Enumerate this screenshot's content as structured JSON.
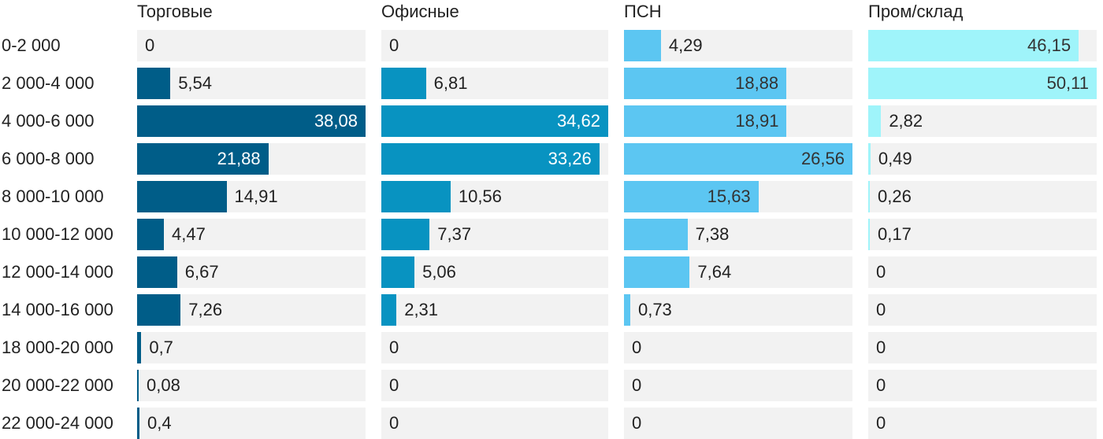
{
  "chart_data": {
    "type": "bar",
    "orientation": "horizontal",
    "categories": [
      "0-2 000",
      "2 000-4 000",
      "4 000-6 000",
      "6 000-8 000",
      "8 000-10 000",
      "10 000-12 000",
      "12 000-14 000",
      "14 000-16 000",
      "18 000-20 000",
      "20 000-22 000",
      "22 000-24 000"
    ],
    "series": [
      {
        "name": "Торговые",
        "color": "#005d88",
        "values": [
          0,
          5.54,
          38.08,
          21.88,
          14.91,
          4.47,
          6.67,
          7.26,
          0.7,
          0.08,
          0.4
        ],
        "labels": [
          "0",
          "5,54",
          "38,08",
          "21,88",
          "14,91",
          "4,47",
          "6,67",
          "7,26",
          "0,7",
          "0,08",
          "0,4"
        ],
        "max": 38.08
      },
      {
        "name": "Офисные",
        "color": "#0893c1",
        "values": [
          0,
          6.81,
          34.62,
          33.26,
          10.56,
          7.37,
          5.06,
          2.31,
          0,
          0,
          0
        ],
        "labels": [
          "0",
          "6,81",
          "34,62",
          "33,26",
          "10,56",
          "7,37",
          "5,06",
          "2,31",
          "0",
          "0",
          "0"
        ],
        "max": 34.62
      },
      {
        "name": "ПСН",
        "color": "#5cc6f2",
        "values": [
          4.29,
          18.88,
          18.91,
          26.56,
          15.63,
          7.38,
          7.64,
          0.73,
          0,
          0,
          0
        ],
        "labels": [
          "4,29",
          "18,88",
          "18,91",
          "26,56",
          "15,63",
          "7,38",
          "7,64",
          "0,73",
          "0",
          "0",
          "0"
        ],
        "max": 26.56
      },
      {
        "name": "Пром/склад",
        "color": "#9ff4fa",
        "values": [
          46.15,
          50.11,
          2.82,
          0.49,
          0.26,
          0.17,
          0,
          0,
          0,
          0,
          0
        ],
        "labels": [
          "46,15",
          "50,11",
          "2,82",
          "0,49",
          "0,26",
          "0,17",
          "0",
          "0",
          "0",
          "0",
          "0"
        ],
        "max": 50.11
      }
    ],
    "grid": false,
    "legend": "none"
  }
}
